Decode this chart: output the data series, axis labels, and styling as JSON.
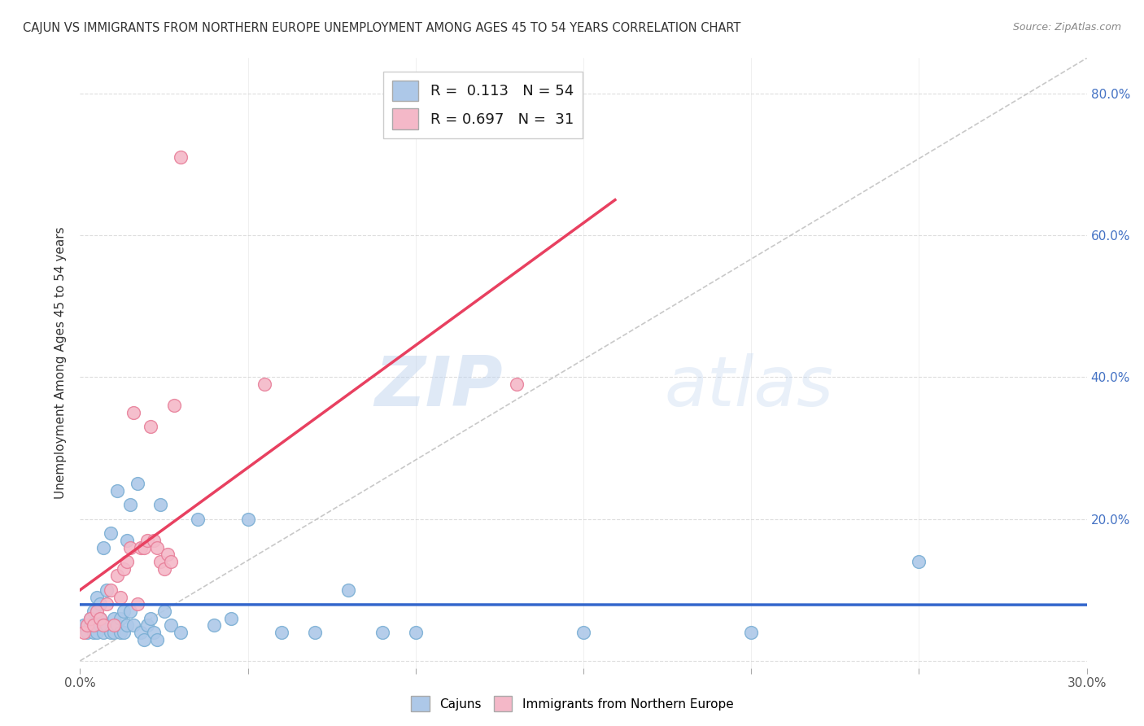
{
  "title": "CAJUN VS IMMIGRANTS FROM NORTHERN EUROPE UNEMPLOYMENT AMONG AGES 45 TO 54 YEARS CORRELATION CHART",
  "source": "Source: ZipAtlas.com",
  "ylabel": "Unemployment Among Ages 45 to 54 years",
  "xlim": [
    0.0,
    0.3
  ],
  "ylim": [
    -0.01,
    0.85
  ],
  "xticks": [
    0.0,
    0.05,
    0.1,
    0.15,
    0.2,
    0.25,
    0.3
  ],
  "xtick_labels": [
    "0.0%",
    "",
    "",
    "",
    "",
    "",
    "30.0%"
  ],
  "yticks": [
    0.0,
    0.2,
    0.4,
    0.6,
    0.8
  ],
  "ytick_labels_right": [
    "",
    "20.0%",
    "40.0%",
    "60.0%",
    "80.0%"
  ],
  "cajun_color": "#adc8e8",
  "cajun_edge_color": "#7bafd4",
  "immigrant_color": "#f4b8c8",
  "immigrant_edge_color": "#e8809a",
  "cajun_line_color": "#3366cc",
  "immigrant_line_color": "#e84060",
  "ref_line_color": "#bbbbbb",
  "legend_R1": "0.113",
  "legend_N1": "54",
  "legend_R2": "0.697",
  "legend_N2": "31",
  "background_color": "#ffffff",
  "grid_color": "#dddddd",
  "watermark_zip": "ZIP",
  "watermark_atlas": "atlas",
  "cajun_x": [
    0.001,
    0.002,
    0.003,
    0.003,
    0.004,
    0.004,
    0.005,
    0.005,
    0.005,
    0.006,
    0.006,
    0.006,
    0.007,
    0.007,
    0.008,
    0.008,
    0.009,
    0.009,
    0.01,
    0.01,
    0.011,
    0.011,
    0.012,
    0.012,
    0.013,
    0.013,
    0.014,
    0.014,
    0.015,
    0.015,
    0.016,
    0.017,
    0.018,
    0.019,
    0.02,
    0.021,
    0.022,
    0.023,
    0.024,
    0.025,
    0.027,
    0.03,
    0.035,
    0.04,
    0.045,
    0.05,
    0.06,
    0.07,
    0.08,
    0.09,
    0.1,
    0.15,
    0.2,
    0.25
  ],
  "cajun_y": [
    0.05,
    0.04,
    0.06,
    0.05,
    0.04,
    0.07,
    0.05,
    0.09,
    0.04,
    0.06,
    0.05,
    0.08,
    0.04,
    0.16,
    0.05,
    0.1,
    0.04,
    0.18,
    0.06,
    0.04,
    0.05,
    0.24,
    0.04,
    0.06,
    0.07,
    0.04,
    0.17,
    0.05,
    0.22,
    0.07,
    0.05,
    0.25,
    0.04,
    0.03,
    0.05,
    0.06,
    0.04,
    0.03,
    0.22,
    0.07,
    0.05,
    0.04,
    0.2,
    0.05,
    0.06,
    0.2,
    0.04,
    0.04,
    0.1,
    0.04,
    0.04,
    0.04,
    0.04,
    0.14
  ],
  "immigrant_x": [
    0.001,
    0.002,
    0.003,
    0.004,
    0.005,
    0.006,
    0.007,
    0.008,
    0.009,
    0.01,
    0.011,
    0.012,
    0.013,
    0.014,
    0.015,
    0.016,
    0.017,
    0.018,
    0.019,
    0.02,
    0.021,
    0.022,
    0.023,
    0.024,
    0.025,
    0.026,
    0.027,
    0.028,
    0.03,
    0.055,
    0.13
  ],
  "immigrant_y": [
    0.04,
    0.05,
    0.06,
    0.05,
    0.07,
    0.06,
    0.05,
    0.08,
    0.1,
    0.05,
    0.12,
    0.09,
    0.13,
    0.14,
    0.16,
    0.35,
    0.08,
    0.16,
    0.16,
    0.17,
    0.33,
    0.17,
    0.16,
    0.14,
    0.13,
    0.15,
    0.14,
    0.36,
    0.71,
    0.39,
    0.39
  ]
}
